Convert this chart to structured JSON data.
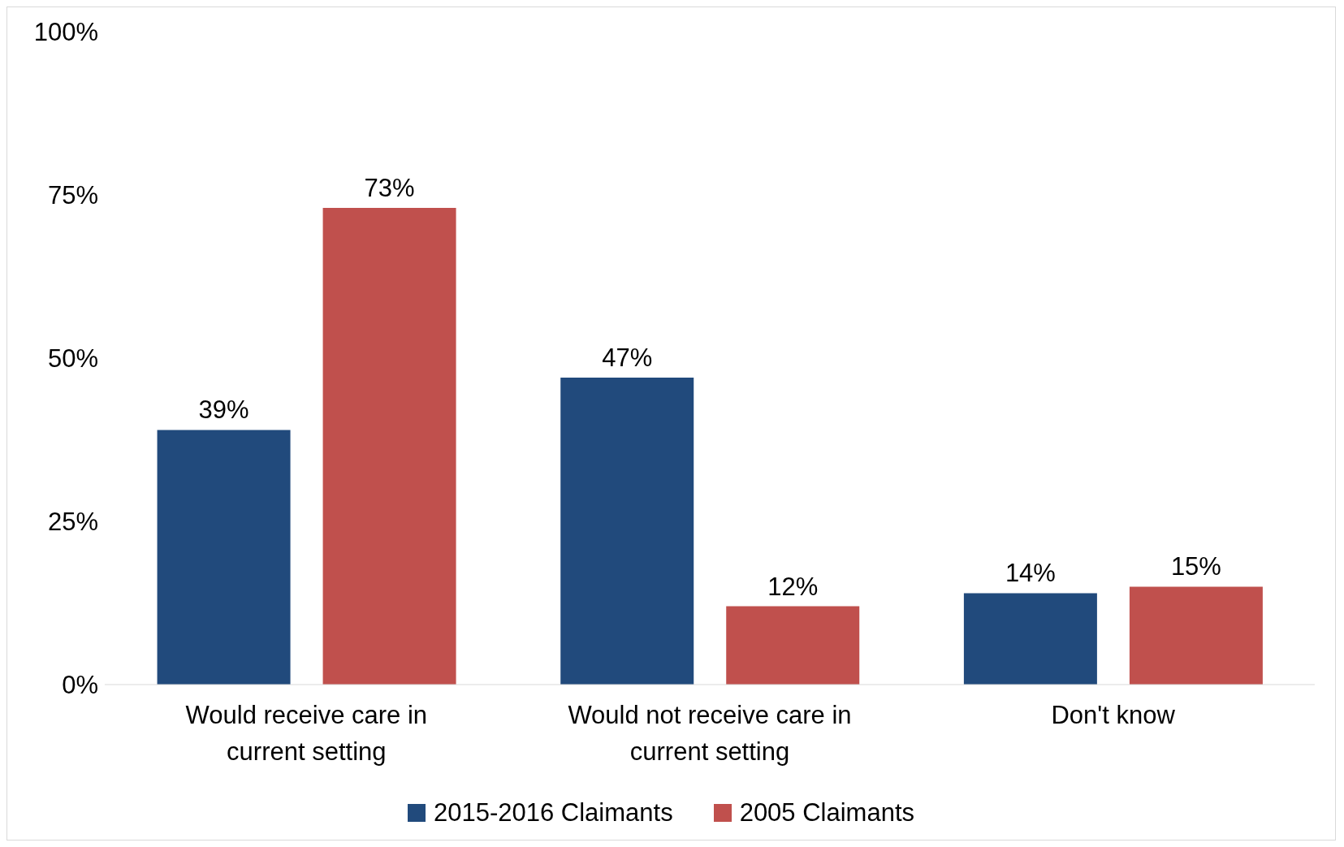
{
  "chart_data": {
    "type": "bar",
    "categories": [
      "Would receive care in current setting",
      "Would not receive care in current setting",
      "Don't know"
    ],
    "series": [
      {
        "name": "2015-2016 Claimants",
        "color": "#214a7c",
        "values": [
          39,
          47,
          14
        ],
        "value_labels": [
          "39%",
          "47%",
          "14%"
        ]
      },
      {
        "name": "2005 Claimants",
        "color": "#c0504d",
        "values": [
          73,
          12,
          15
        ],
        "value_labels": [
          "73%",
          "12%",
          "15%"
        ]
      }
    ],
    "ylim": [
      0,
      100
    ],
    "yticks": [
      {
        "value": 0,
        "label": "0%"
      },
      {
        "value": 25,
        "label": "25%"
      },
      {
        "value": 50,
        "label": "50%"
      },
      {
        "value": 75,
        "label": "75%"
      },
      {
        "value": 100,
        "label": "100%"
      }
    ],
    "grid": false,
    "legend": "bottom"
  }
}
